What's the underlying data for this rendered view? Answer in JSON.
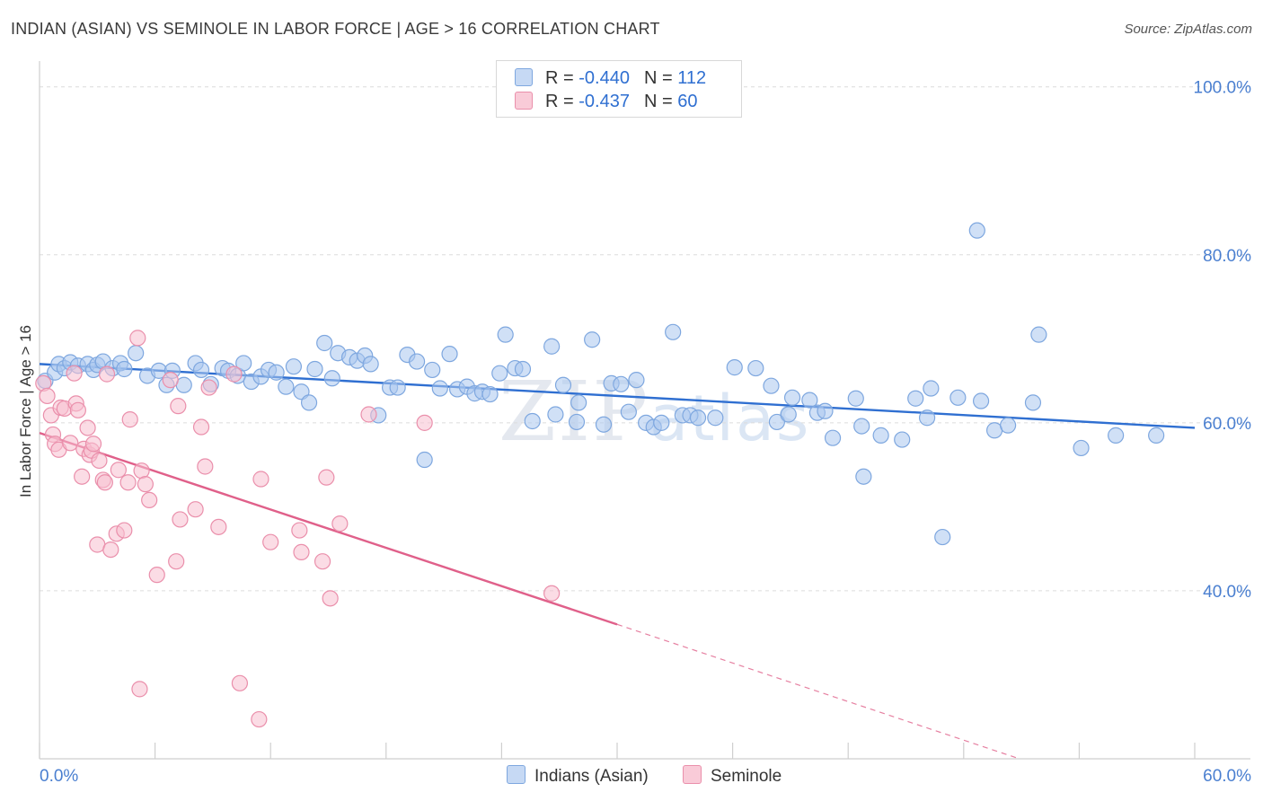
{
  "header": {
    "title": "INDIAN (ASIAN) VS SEMINOLE IN LABOR FORCE | AGE > 16 CORRELATION CHART",
    "source": "Source: ZipAtlas.com"
  },
  "legend": {
    "rows": [
      {
        "r_label": "R =",
        "r_value": "-0.440",
        "n_label": "N =",
        "n_value": "112",
        "color": "#a9c6ef"
      },
      {
        "r_label": "R =",
        "r_value": "-0.437",
        "n_label": "N =",
        "n_value": "60",
        "color": "#f5b7c9"
      }
    ]
  },
  "watermark": {
    "zip": "ZIP",
    "atlas": "atlas"
  },
  "colors": {
    "blue_fill": "#a9c6ef",
    "blue_stroke": "#7ea7df",
    "blue_line": "#2f6fd1",
    "pink_fill": "#f7c0d0",
    "pink_stroke": "#ea8fab",
    "pink_line": "#e0608a",
    "grid": "#dcdcdc"
  },
  "chart_data": {
    "type": "scatter",
    "title": "INDIAN (ASIAN) VS SEMINOLE IN LABOR FORCE | AGE > 16 CORRELATION CHART",
    "xlabel": "",
    "ylabel": "In Labor Force | Age > 16",
    "xlim": [
      0,
      60
    ],
    "ylim": [
      20,
      102
    ],
    "x_tick_labels": [
      "0.0%",
      "60.0%"
    ],
    "y_ticks": [
      40,
      60,
      80,
      100
    ],
    "y_tick_labels": [
      "40.0%",
      "60.0%",
      "80.0%",
      "100.0%"
    ],
    "grid": true,
    "legend_position": "top-center",
    "series": [
      {
        "name": "Indians (Asian)",
        "color": "#a9c6ef",
        "trend": {
          "x": [
            0,
            60
          ],
          "y": [
            67.0,
            59.4
          ]
        },
        "points": [
          [
            0.3,
            65.0
          ],
          [
            0.8,
            66.0
          ],
          [
            1.0,
            67.0
          ],
          [
            1.3,
            66.5
          ],
          [
            1.6,
            67.2
          ],
          [
            2.0,
            66.8
          ],
          [
            2.5,
            67.0
          ],
          [
            2.8,
            66.3
          ],
          [
            3.0,
            66.9
          ],
          [
            3.3,
            67.3
          ],
          [
            3.8,
            66.5
          ],
          [
            4.2,
            67.1
          ],
          [
            4.4,
            66.4
          ],
          [
            5.0,
            68.3
          ],
          [
            5.6,
            65.6
          ],
          [
            6.2,
            66.2
          ],
          [
            6.6,
            64.5
          ],
          [
            6.9,
            66.2
          ],
          [
            7.5,
            64.5
          ],
          [
            8.1,
            67.1
          ],
          [
            8.4,
            66.3
          ],
          [
            8.9,
            64.6
          ],
          [
            9.5,
            66.5
          ],
          [
            9.8,
            66.2
          ],
          [
            10.3,
            65.6
          ],
          [
            10.6,
            67.1
          ],
          [
            11.0,
            64.9
          ],
          [
            11.5,
            65.5
          ],
          [
            11.9,
            66.3
          ],
          [
            12.3,
            66.0
          ],
          [
            12.8,
            64.3
          ],
          [
            13.2,
            66.7
          ],
          [
            13.6,
            63.7
          ],
          [
            14.0,
            62.4
          ],
          [
            14.3,
            66.4
          ],
          [
            14.8,
            69.5
          ],
          [
            15.2,
            65.3
          ],
          [
            15.5,
            68.3
          ],
          [
            16.1,
            67.8
          ],
          [
            16.5,
            67.4
          ],
          [
            16.9,
            68.0
          ],
          [
            17.2,
            67.0
          ],
          [
            17.6,
            60.9
          ],
          [
            18.2,
            64.2
          ],
          [
            18.6,
            64.2
          ],
          [
            19.1,
            68.1
          ],
          [
            19.6,
            67.3
          ],
          [
            20.0,
            55.6
          ],
          [
            20.4,
            66.3
          ],
          [
            20.8,
            64.1
          ],
          [
            21.3,
            68.2
          ],
          [
            21.7,
            64.0
          ],
          [
            22.2,
            64.3
          ],
          [
            22.6,
            63.5
          ],
          [
            23.0,
            63.7
          ],
          [
            23.4,
            63.4
          ],
          [
            23.9,
            65.9
          ],
          [
            24.2,
            70.5
          ],
          [
            24.7,
            66.5
          ],
          [
            25.1,
            66.4
          ],
          [
            25.6,
            60.2
          ],
          [
            26.6,
            69.1
          ],
          [
            26.8,
            61.0
          ],
          [
            27.2,
            64.5
          ],
          [
            27.9,
            60.1
          ],
          [
            28.0,
            62.4
          ],
          [
            28.7,
            69.9
          ],
          [
            29.3,
            59.8
          ],
          [
            29.7,
            64.7
          ],
          [
            30.2,
            64.6
          ],
          [
            30.6,
            61.3
          ],
          [
            31.0,
            65.1
          ],
          [
            31.5,
            60.0
          ],
          [
            31.9,
            59.5
          ],
          [
            32.3,
            60.0
          ],
          [
            32.9,
            70.8
          ],
          [
            33.4,
            60.9
          ],
          [
            33.8,
            60.9
          ],
          [
            34.2,
            60.6
          ],
          [
            35.1,
            60.6
          ],
          [
            36.1,
            66.6
          ],
          [
            37.2,
            66.5
          ],
          [
            38.0,
            64.4
          ],
          [
            38.3,
            60.1
          ],
          [
            38.9,
            61.0
          ],
          [
            39.1,
            63.0
          ],
          [
            40.0,
            62.7
          ],
          [
            40.4,
            61.2
          ],
          [
            40.8,
            61.4
          ],
          [
            41.2,
            58.2
          ],
          [
            42.4,
            62.9
          ],
          [
            42.7,
            59.6
          ],
          [
            42.8,
            53.6
          ],
          [
            43.7,
            58.5
          ],
          [
            44.8,
            58.0
          ],
          [
            45.5,
            62.9
          ],
          [
            46.1,
            60.6
          ],
          [
            46.3,
            64.1
          ],
          [
            47.7,
            63.0
          ],
          [
            46.9,
            46.4
          ],
          [
            48.9,
            62.6
          ],
          [
            48.7,
            82.9
          ],
          [
            49.6,
            59.1
          ],
          [
            50.3,
            59.7
          ],
          [
            51.6,
            62.4
          ],
          [
            51.9,
            70.5
          ],
          [
            54.1,
            57.0
          ],
          [
            55.9,
            58.5
          ],
          [
            58.0,
            58.5
          ]
        ]
      },
      {
        "name": "Seminole",
        "color": "#f5b7c9",
        "trend": {
          "x": [
            0,
            30
          ],
          "y": [
            58.8,
            36.0
          ],
          "dashed_to": {
            "x": 50.9,
            "y": 20.0
          }
        },
        "points": [
          [
            0.2,
            64.7
          ],
          [
            0.4,
            63.2
          ],
          [
            0.6,
            60.9
          ],
          [
            0.7,
            58.6
          ],
          [
            0.8,
            57.5
          ],
          [
            1.0,
            56.8
          ],
          [
            1.1,
            61.8
          ],
          [
            1.3,
            61.7
          ],
          [
            1.6,
            57.6
          ],
          [
            1.8,
            65.9
          ],
          [
            1.9,
            62.3
          ],
          [
            2.0,
            61.5
          ],
          [
            2.2,
            53.6
          ],
          [
            2.3,
            56.9
          ],
          [
            2.5,
            59.4
          ],
          [
            2.6,
            56.2
          ],
          [
            2.7,
            56.7
          ],
          [
            2.8,
            57.5
          ],
          [
            3.0,
            45.5
          ],
          [
            3.1,
            55.5
          ],
          [
            3.3,
            53.2
          ],
          [
            3.4,
            52.9
          ],
          [
            3.5,
            65.8
          ],
          [
            3.7,
            44.9
          ],
          [
            4.0,
            46.8
          ],
          [
            4.1,
            54.4
          ],
          [
            4.4,
            47.2
          ],
          [
            4.6,
            52.9
          ],
          [
            4.7,
            60.4
          ],
          [
            5.1,
            70.1
          ],
          [
            5.2,
            28.3
          ],
          [
            5.3,
            54.3
          ],
          [
            5.5,
            52.7
          ],
          [
            5.7,
            50.8
          ],
          [
            6.1,
            41.9
          ],
          [
            6.8,
            65.1
          ],
          [
            7.1,
            43.5
          ],
          [
            7.2,
            62.0
          ],
          [
            7.3,
            48.5
          ],
          [
            8.1,
            49.7
          ],
          [
            8.4,
            59.5
          ],
          [
            8.6,
            54.8
          ],
          [
            8.8,
            64.2
          ],
          [
            9.3,
            47.6
          ],
          [
            10.1,
            65.8
          ],
          [
            10.4,
            29.0
          ],
          [
            11.4,
            24.7
          ],
          [
            11.5,
            53.3
          ],
          [
            12.0,
            45.8
          ],
          [
            13.5,
            47.2
          ],
          [
            13.6,
            44.6
          ],
          [
            14.7,
            43.5
          ],
          [
            14.9,
            53.5
          ],
          [
            15.1,
            39.1
          ],
          [
            15.6,
            48.0
          ],
          [
            17.1,
            61.0
          ],
          [
            20.0,
            60.0
          ],
          [
            26.6,
            39.7
          ]
        ]
      }
    ]
  },
  "bottom_legend": {
    "items": [
      {
        "label": "Indians (Asian)",
        "color": "#a9c6ef"
      },
      {
        "label": "Seminole",
        "color": "#f5b7c9"
      }
    ]
  }
}
